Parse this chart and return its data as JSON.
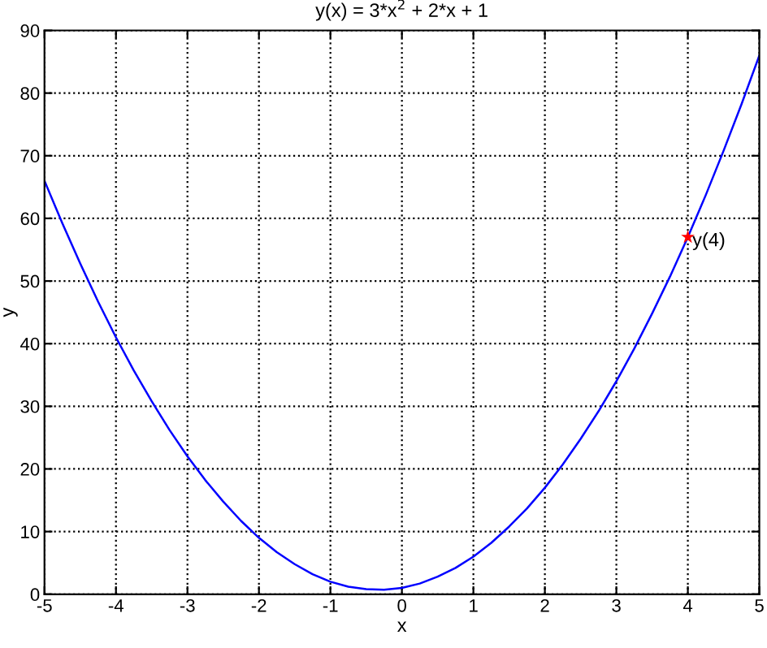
{
  "chart_data": {
    "type": "line",
    "title": "y(x) = 3*x$^{2}$ + 2*x + 1",
    "xlabel": "x",
    "ylabel": "y",
    "xlim": [
      -5,
      5
    ],
    "ylim": [
      0,
      90
    ],
    "xticks": [
      -5,
      -4,
      -3,
      -2,
      -1,
      0,
      1,
      2,
      3,
      4,
      5
    ],
    "yticks": [
      0,
      10,
      20,
      30,
      40,
      50,
      60,
      70,
      80,
      90
    ],
    "grid": true,
    "series": [
      {
        "color": "#0000ff",
        "marker": "none",
        "x": [
          -5,
          -4.75,
          -4.5,
          -4.25,
          -4,
          -3.75,
          -3.5,
          -3.25,
          -3,
          -2.75,
          -2.5,
          -2.25,
          -2,
          -1.75,
          -1.5,
          -1.25,
          -1,
          -0.75,
          -0.5,
          -0.25,
          0,
          0.25,
          0.5,
          0.75,
          1,
          1.25,
          1.5,
          1.75,
          2,
          2.25,
          2.5,
          2.75,
          3,
          3.25,
          3.5,
          3.75,
          4,
          4.25,
          4.5,
          4.75,
          5
        ],
        "values": [
          66,
          59.2,
          52.8,
          46.7,
          41,
          35.7,
          30.8,
          26.2,
          22,
          18.2,
          14.8,
          11.7,
          9,
          6.7,
          4.8,
          3.2,
          2,
          1.2,
          0.8,
          0.7,
          1,
          1.7,
          2.8,
          4.2,
          6,
          8.2,
          10.8,
          13.7,
          17,
          20.7,
          24.8,
          29.2,
          34,
          39.2,
          44.8,
          50.7,
          57,
          63.7,
          70.8,
          78.2,
          86
        ]
      },
      {
        "type": "scatter",
        "color": "#ff0000",
        "marker": "star",
        "x": [
          4
        ],
        "values": [
          57
        ]
      }
    ],
    "annotations": [
      {
        "text": "y(4)",
        "x": 4,
        "y": 57
      }
    ]
  }
}
